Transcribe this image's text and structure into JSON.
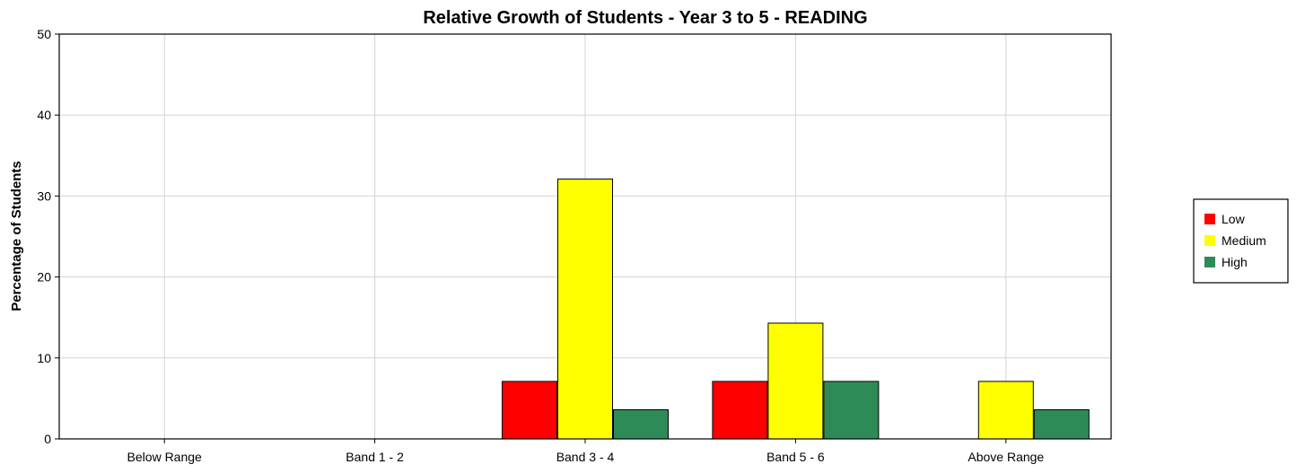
{
  "chart_data": {
    "type": "bar",
    "title": "Relative Growth of Students - Year 3 to 5 - READING",
    "xlabel": "",
    "ylabel": "Percentage of Students",
    "categories": [
      "Below Range",
      "Band 1 - 2",
      "Band 3 - 4",
      "Band 5 - 6",
      "Above Range"
    ],
    "series": [
      {
        "name": "Low",
        "color": "#ff0000",
        "values": [
          0,
          0,
          7.1,
          7.1,
          0
        ]
      },
      {
        "name": "Medium",
        "color": "#ffff00",
        "values": [
          0,
          0,
          32.1,
          14.3,
          7.1
        ]
      },
      {
        "name": "High",
        "color": "#2e8b57",
        "values": [
          0,
          0,
          3.6,
          7.1,
          3.6
        ]
      }
    ],
    "ylim": [
      0,
      50
    ],
    "yticks": [
      0,
      10,
      20,
      30,
      40,
      50
    ],
    "grid": true,
    "legend_position": "right"
  }
}
